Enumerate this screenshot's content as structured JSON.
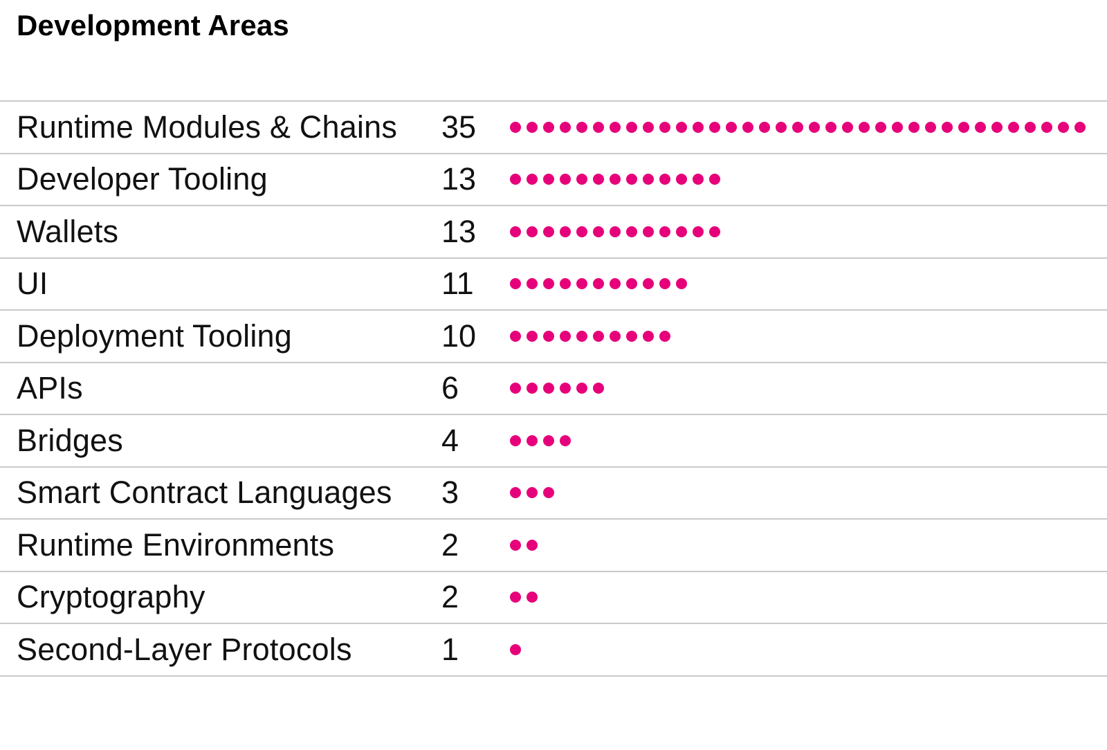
{
  "header": {
    "title": "Development Areas"
  },
  "colors": {
    "accent": "#E6007A",
    "separator": "#C9C9C9",
    "text": "#111111",
    "title_text": "#000000",
    "background": "#FFFFFF"
  },
  "chart_data": {
    "type": "bar",
    "variant": "dot-tally",
    "title": "Development Areas",
    "orientation": "horizontal",
    "unit_dot_value": 1,
    "value_range": [
      0,
      35
    ],
    "grid": "row-separators-only",
    "legend": "none",
    "categories": [
      "Runtime Modules & Chains",
      "Developer Tooling",
      "Wallets",
      "UI",
      "Deployment Tooling",
      "APIs",
      "Bridges",
      "Smart Contract Languages",
      "Runtime Environments",
      "Cryptography",
      "Second-Layer Protocols"
    ],
    "values": [
      35,
      13,
      13,
      11,
      10,
      6,
      4,
      3,
      2,
      2,
      1
    ]
  }
}
